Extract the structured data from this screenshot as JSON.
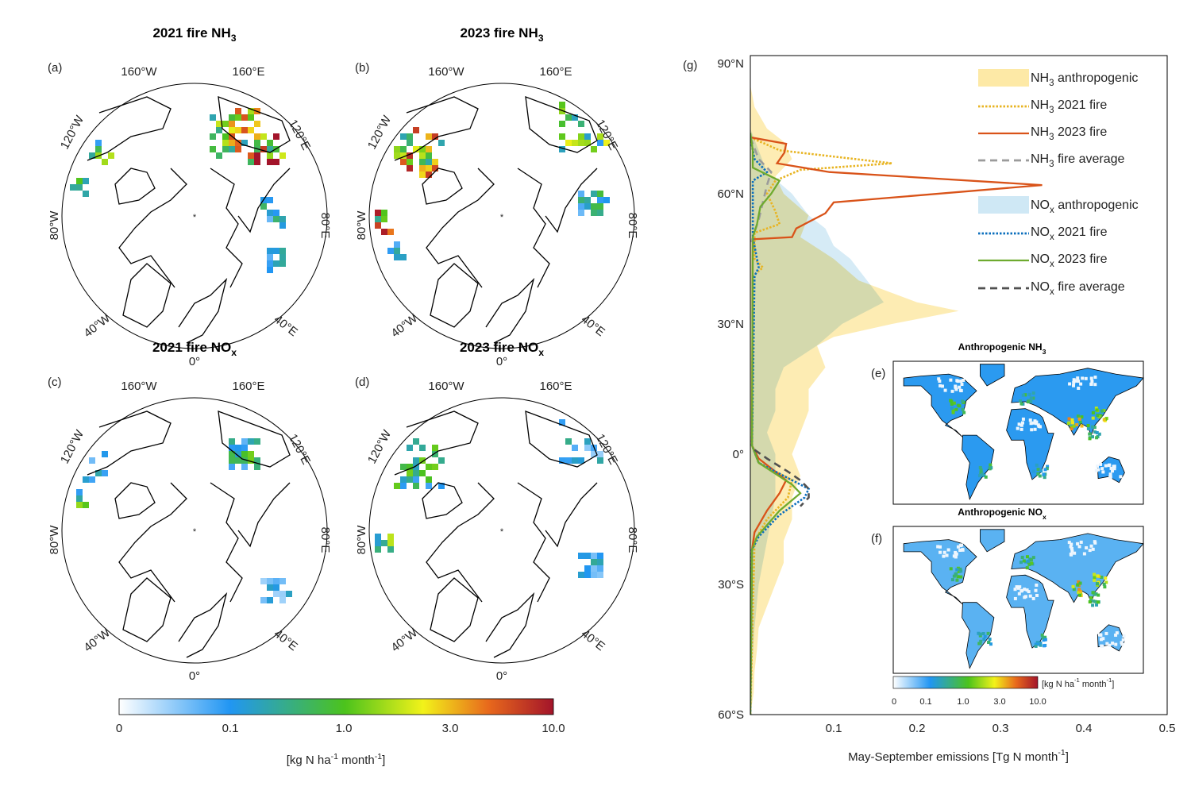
{
  "polar_panels": [
    {
      "id": "a",
      "label": "(a)",
      "title": "2021 fire NH",
      "title_sub": "3",
      "species": "NH3",
      "year": "2021"
    },
    {
      "id": "b",
      "label": "(b)",
      "title": "2023 fire NH",
      "title_sub": "3",
      "species": "NH3",
      "year": "2023"
    },
    {
      "id": "c",
      "label": "(c)",
      "title": "2021 fire NO",
      "title_sub": "x",
      "species": "NOx",
      "year": "2021"
    },
    {
      "id": "d",
      "label": "(d)",
      "title": "2023 fire NO",
      "title_sub": "x",
      "species": "NOx",
      "year": "2023"
    }
  ],
  "polar_lon_labels": [
    "160°W",
    "160°E",
    "120°W",
    "120°E",
    "80°W",
    "80°E",
    "40°W",
    "40°E",
    "0°"
  ],
  "colorbar": {
    "ticks": [
      "0",
      "0.1",
      "1.0",
      "3.0",
      "10.0"
    ],
    "unit_pre": "[kg N ha",
    "unit_sup1": "-1",
    "unit_mid": " month",
    "unit_sup2": "-1",
    "unit_post": "]",
    "colors": [
      "#ffffff",
      "#2196f3",
      "#4cc31c",
      "#f2f21a",
      "#e8691c",
      "#a3142a"
    ]
  },
  "world_panels": [
    {
      "id": "e",
      "label": "(e)",
      "title": "Anthropogenic NH",
      "title_sub": "3"
    },
    {
      "id": "f",
      "label": "(f)",
      "title": "Anthropogenic NO",
      "title_sub": "x"
    }
  ],
  "chart_data": {
    "type": "line",
    "panel_label": "(g)",
    "xlabel_pre": "May-September emissions [Tg N month",
    "xlabel_sup": "-1",
    "xlabel_post": "]",
    "xlim": [
      0,
      0.5
    ],
    "ylim": [
      -60,
      90
    ],
    "xticks": [
      {
        "v": 0.1,
        "label": "0.1"
      },
      {
        "v": 0.2,
        "label": "0.2"
      },
      {
        "v": 0.3,
        "label": "0.3"
      },
      {
        "v": 0.4,
        "label": "0.4"
      },
      {
        "v": 0.5,
        "label": "0.5"
      }
    ],
    "yticks": [
      {
        "v": 90,
        "label": "90°N"
      },
      {
        "v": 60,
        "label": "60°N"
      },
      {
        "v": 30,
        "label": "30°N"
      },
      {
        "v": 0,
        "label": "0°"
      },
      {
        "v": -30,
        "label": "30°S"
      },
      {
        "v": -60,
        "label": "60°S"
      }
    ],
    "legend_placement": "top-right",
    "series": [
      {
        "name": "NH",
        "name_sub": "3",
        "name_post": " anthropogenic",
        "kind": "area",
        "color": "#fde9a6",
        "lat": [
          90,
          85,
          80,
          75,
          72,
          68,
          64,
          60,
          55,
          50,
          45,
          40,
          35,
          33,
          30,
          27,
          25,
          20,
          15,
          10,
          5,
          0,
          -5,
          -10,
          -15,
          -20,
          -25,
          -30,
          -35,
          -40,
          -45,
          -50,
          -55,
          -60
        ],
        "value": [
          0,
          0,
          0.005,
          0.02,
          0.04,
          0.05,
          0.03,
          0.04,
          0.07,
          0.06,
          0.1,
          0.13,
          0.2,
          0.25,
          0.17,
          0.1,
          0.08,
          0.09,
          0.07,
          0.07,
          0.06,
          0.05,
          0.06,
          0.05,
          0.05,
          0.04,
          0.04,
          0.03,
          0.02,
          0.01,
          0.008,
          0.005,
          0.004,
          0
        ]
      },
      {
        "name": "NH",
        "name_sub": "3",
        "name_post": " 2021 fire",
        "kind": "line",
        "dash": "dot",
        "color": "#e8b422",
        "lat": [
          73,
          70,
          67,
          65.5,
          63,
          60,
          56,
          53,
          51,
          45,
          43,
          41,
          2,
          -2,
          -6,
          -10,
          -15,
          -20,
          -60
        ],
        "value": [
          0,
          0.035,
          0.17,
          0.06,
          0.03,
          0.02,
          0.03,
          0.035,
          0.005,
          0.005,
          0.015,
          0.003,
          0.002,
          0.01,
          0.05,
          0.045,
          0.02,
          0.005,
          0
        ]
      },
      {
        "name": "NH",
        "name_sub": "3",
        "name_post": " 2023 fire",
        "kind": "line",
        "dash": "solid",
        "color": "#d95319",
        "lat": [
          73,
          71.5,
          69.5,
          67,
          65,
          62,
          58,
          55.5,
          52,
          50,
          49.5,
          2,
          -1,
          -4,
          -6,
          -9,
          -13,
          -18,
          -22,
          -60
        ],
        "value": [
          0,
          0.043,
          0.041,
          0.032,
          0.095,
          0.35,
          0.1,
          0.09,
          0.055,
          0.05,
          0.003,
          0.002,
          0.01,
          0.03,
          0.043,
          0.035,
          0.02,
          0.005,
          0.002,
          0
        ]
      },
      {
        "name": "NH",
        "name_sub": "3",
        "name_post": " fire average",
        "kind": "line",
        "dash": "dash",
        "color": "#9b9b9b",
        "lat": [
          73,
          68,
          65,
          62,
          58,
          54,
          50,
          48
        ],
        "value": [
          0,
          0.01,
          0.025,
          0.02,
          0.015,
          0.01,
          0.003,
          0
        ]
      },
      {
        "name": "NO",
        "name_sub": "x",
        "name_post": " anthropogenic",
        "kind": "area",
        "color": "#cfe8f5",
        "lat": [
          90,
          75,
          70,
          65,
          60,
          55,
          52,
          48,
          45,
          40,
          35,
          30,
          25,
          20,
          15,
          10,
          5,
          0,
          -5,
          -10,
          -20,
          -30,
          -40,
          -50,
          -60
        ],
        "value": [
          0,
          0,
          0.01,
          0.02,
          0.05,
          0.07,
          0.09,
          0.1,
          0.12,
          0.14,
          0.16,
          0.11,
          0.08,
          0.04,
          0.03,
          0.03,
          0.02,
          0.03,
          0.03,
          0.03,
          0.02,
          0.01,
          0.005,
          0.002,
          0
        ]
      },
      {
        "name": "NO",
        "name_sub": "x",
        "name_post": " 2021 fire",
        "kind": "line",
        "dash": "dot",
        "color": "#0b6fbd",
        "lat": [
          73,
          68,
          65,
          63,
          55,
          50,
          43,
          41,
          2,
          -2,
          -6,
          -8,
          -10,
          -14,
          -19,
          -22,
          -60
        ],
        "value": [
          0,
          0.005,
          0.02,
          0.003,
          0.003,
          0.003,
          0.01,
          0.005,
          0.002,
          0.01,
          0.05,
          0.07,
          0.065,
          0.035,
          0.01,
          0.002,
          0
        ]
      },
      {
        "name": "NO",
        "name_sub": "x",
        "name_post": " 2023 fire",
        "kind": "line",
        "dash": "solid",
        "color": "#6eaa2f",
        "lat": [
          74,
          70,
          66,
          63,
          60,
          57,
          53,
          50,
          2,
          -2,
          -7,
          -9,
          -13,
          -19,
          -22,
          -60
        ],
        "value": [
          0,
          0.003,
          0.003,
          0.035,
          0.025,
          0.012,
          0.008,
          0.003,
          0.002,
          0.01,
          0.05,
          0.06,
          0.035,
          0.008,
          0.002,
          0
        ]
      },
      {
        "name": "NO",
        "name_sub": "x",
        "name_post": " fire average",
        "kind": "line",
        "dash": "dash",
        "color": "#505050",
        "lat": [
          1,
          -1,
          -4,
          -6,
          -8,
          -10,
          -12
        ],
        "value": [
          0.005,
          0.02,
          0.045,
          0.06,
          0.07,
          0.07,
          0.06
        ]
      }
    ]
  }
}
